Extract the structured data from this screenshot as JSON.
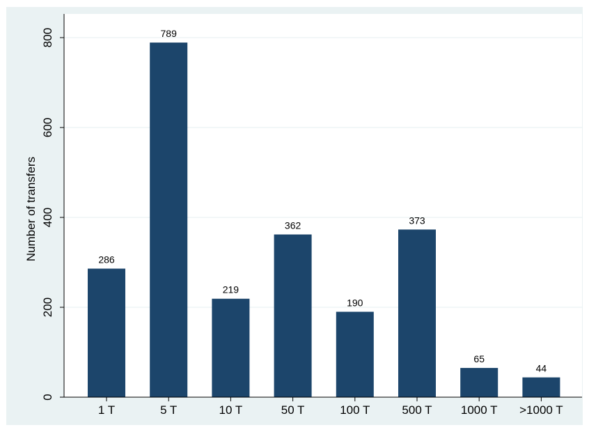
{
  "colors": {
    "bar": "#1c456b",
    "outer_background": "#eaf2f3",
    "plot_background": "#ffffff",
    "gridline": "#eaf2f3"
  },
  "chart_data": {
    "type": "bar",
    "categories": [
      "1 T",
      "5 T",
      "10 T",
      "50 T",
      "100 T",
      "500 T",
      "1000 T",
      ">1000 T"
    ],
    "values": [
      286,
      789,
      219,
      362,
      190,
      373,
      65,
      44
    ],
    "data_labels": [
      "286",
      "789",
      "219",
      "362",
      "190",
      "373",
      "65",
      "44"
    ],
    "title": "",
    "xlabel": "",
    "ylabel": "Number of transfers",
    "ylim": [
      0,
      800
    ],
    "yticks": [
      0,
      200,
      400,
      600,
      800
    ],
    "ytick_labels": [
      "0",
      "200",
      "400",
      "600",
      "800"
    ],
    "grid": true,
    "legend": "none"
  }
}
